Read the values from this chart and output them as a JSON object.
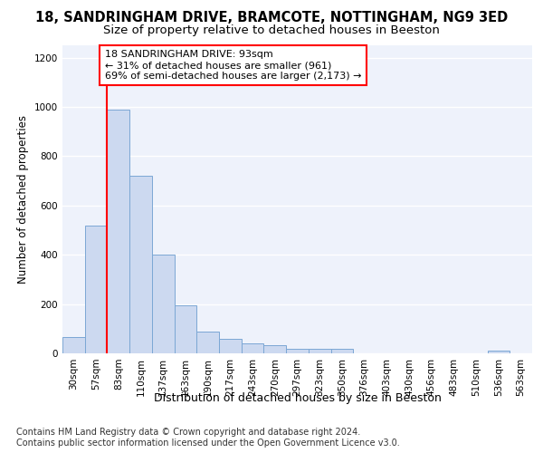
{
  "title1": "18, SANDRINGHAM DRIVE, BRAMCOTE, NOTTINGHAM, NG9 3ED",
  "title2": "Size of property relative to detached houses in Beeston",
  "xlabel": "Distribution of detached houses by size in Beeston",
  "ylabel": "Number of detached properties",
  "categories": [
    "30sqm",
    "57sqm",
    "83sqm",
    "110sqm",
    "137sqm",
    "163sqm",
    "190sqm",
    "217sqm",
    "243sqm",
    "270sqm",
    "297sqm",
    "323sqm",
    "350sqm",
    "376sqm",
    "403sqm",
    "430sqm",
    "456sqm",
    "483sqm",
    "510sqm",
    "536sqm",
    "563sqm"
  ],
  "values": [
    65,
    520,
    990,
    720,
    400,
    195,
    90,
    60,
    40,
    32,
    18,
    17,
    20,
    0,
    0,
    0,
    0,
    0,
    0,
    10,
    0
  ],
  "bar_color": "#ccd9f0",
  "bar_edge_color": "#7ba7d4",
  "property_line_bin": 2,
  "annotation_text": "18 SANDRINGHAM DRIVE: 93sqm\n← 31% of detached houses are smaller (961)\n69% of semi-detached houses are larger (2,173) →",
  "annotation_box_color": "white",
  "annotation_box_edgecolor": "red",
  "vline_color": "red",
  "ylim": [
    0,
    1250
  ],
  "yticks": [
    0,
    200,
    400,
    600,
    800,
    1000,
    1200
  ],
  "footer1": "Contains HM Land Registry data © Crown copyright and database right 2024.",
  "footer2": "Contains public sector information licensed under the Open Government Licence v3.0.",
  "bg_color": "#eef2fb",
  "grid_color": "#ffffff",
  "title1_fontsize": 10.5,
  "title2_fontsize": 9.5,
  "xlabel_fontsize": 9,
  "ylabel_fontsize": 8.5,
  "tick_fontsize": 7.5,
  "annot_fontsize": 8,
  "footer_fontsize": 7
}
